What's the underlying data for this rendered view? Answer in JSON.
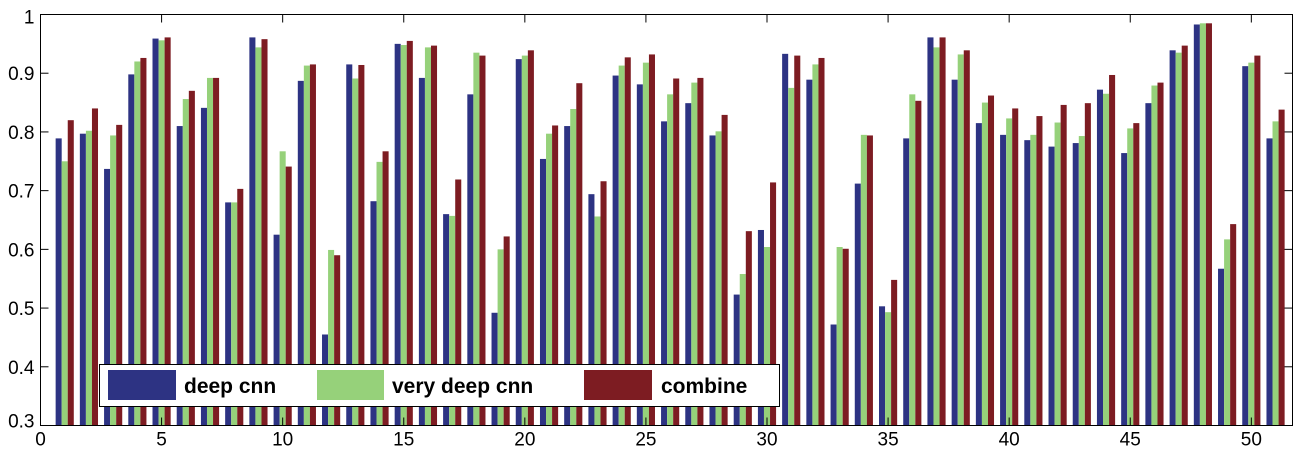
{
  "chart_data": {
    "type": "bar",
    "title": "",
    "xlabel": "",
    "ylabel": "",
    "xlim": [
      0,
      51.7
    ],
    "ylim": [
      0.3,
      1
    ],
    "grid": false,
    "legend_position": "bottom-left",
    "x_ticks": [
      0,
      5,
      10,
      15,
      20,
      25,
      30,
      35,
      40,
      45,
      50
    ],
    "y_ticks": [
      0.3,
      0.4,
      0.5,
      0.6,
      0.7,
      0.8,
      0.9,
      1
    ],
    "y_tick_labels": [
      "0.3",
      "0.4",
      "0.5",
      "0.6",
      "0.7",
      "0.8",
      "0.9",
      "1"
    ],
    "categories": [
      1,
      2,
      3,
      4,
      5,
      6,
      7,
      8,
      9,
      10,
      11,
      12,
      13,
      14,
      15,
      16,
      17,
      18,
      19,
      20,
      21,
      22,
      23,
      24,
      25,
      26,
      27,
      28,
      29,
      30,
      31,
      32,
      33,
      34,
      35,
      36,
      37,
      38,
      39,
      40,
      41,
      42,
      43,
      44,
      45,
      46,
      47,
      48,
      49,
      50,
      51
    ],
    "series": [
      {
        "name": "deep cnn",
        "color": "#2d3383",
        "values": [
          0.789,
          0.797,
          0.737,
          0.898,
          0.959,
          0.81,
          0.841,
          0.68,
          0.961,
          0.625,
          0.887,
          0.455,
          0.915,
          0.682,
          0.95,
          0.892,
          0.66,
          0.864,
          0.492,
          0.924,
          0.754,
          0.81,
          0.694,
          0.896,
          0.881,
          0.818,
          0.849,
          0.794,
          0.523,
          0.633,
          0.933,
          0.889,
          0.472,
          0.712,
          0.503,
          0.789,
          0.961,
          0.889,
          0.815,
          0.795,
          0.786,
          0.775,
          0.781,
          0.872,
          0.764,
          0.849,
          0.939,
          0.983,
          0.567,
          0.912,
          0.789
        ]
      },
      {
        "name": "very deep cnn",
        "color": "#96d17a",
        "values": [
          0.75,
          0.802,
          0.794,
          0.92,
          0.956,
          0.856,
          0.892,
          0.68,
          0.944,
          0.767,
          0.913,
          0.599,
          0.891,
          0.749,
          0.948,
          0.944,
          0.657,
          0.935,
          0.6,
          0.93,
          0.797,
          0.839,
          0.656,
          0.913,
          0.918,
          0.864,
          0.884,
          0.801,
          0.558,
          0.604,
          0.875,
          0.915,
          0.604,
          0.795,
          0.493,
          0.864,
          0.944,
          0.932,
          0.85,
          0.823,
          0.795,
          0.816,
          0.793,
          0.865,
          0.806,
          0.879,
          0.935,
          0.985,
          0.617,
          0.918,
          0.818
        ]
      },
      {
        "name": "combine",
        "color": "#7d1c22",
        "values": [
          0.82,
          0.84,
          0.812,
          0.926,
          0.961,
          0.87,
          0.892,
          0.703,
          0.958,
          0.741,
          0.915,
          0.59,
          0.914,
          0.767,
          0.955,
          0.947,
          0.719,
          0.93,
          0.622,
          0.939,
          0.811,
          0.883,
          0.716,
          0.927,
          0.932,
          0.891,
          0.892,
          0.829,
          0.631,
          0.714,
          0.93,
          0.926,
          0.601,
          0.794,
          0.548,
          0.853,
          0.961,
          0.939,
          0.862,
          0.84,
          0.827,
          0.846,
          0.849,
          0.897,
          0.815,
          0.884,
          0.947,
          0.985,
          0.643,
          0.93,
          0.838
        ]
      }
    ]
  }
}
